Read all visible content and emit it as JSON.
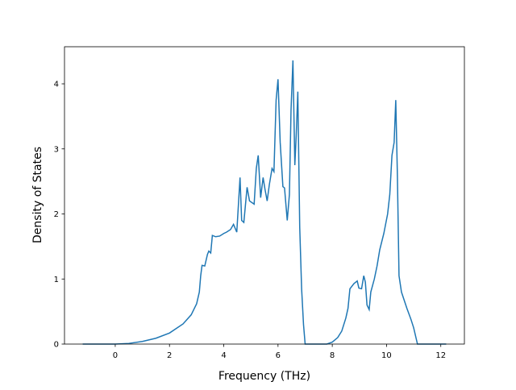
{
  "chart_data": {
    "type": "line",
    "xlabel": "Frequency (THz)",
    "ylabel": "Density of States",
    "xlim": [
      -1.87,
      12.87
    ],
    "ylim": [
      0,
      4.57
    ],
    "xticks": [
      0,
      2,
      4,
      6,
      8,
      10,
      12
    ],
    "yticks": [
      0,
      1,
      2,
      3,
      4
    ],
    "series": [
      {
        "color": "#1f77b4",
        "x": [
          -1.2,
          -0.5,
          0,
          0.5,
          1,
          1.5,
          2,
          2.5,
          2.8,
          3.0,
          3.1,
          3.15,
          3.2,
          3.3,
          3.4,
          3.45,
          3.52,
          3.58,
          3.7,
          3.85,
          4.0,
          4.1,
          4.25,
          4.36,
          4.48,
          4.6,
          4.66,
          4.74,
          4.86,
          4.95,
          5.12,
          5.2,
          5.27,
          5.36,
          5.45,
          5.52,
          5.6,
          5.68,
          5.78,
          5.85,
          5.93,
          6.0,
          6.08,
          6.18,
          6.24,
          6.34,
          6.42,
          6.48,
          6.55,
          6.62,
          6.67,
          6.73,
          6.8,
          6.87,
          6.94,
          7.0,
          7.8,
          8.0,
          8.2,
          8.35,
          8.5,
          8.58,
          8.65,
          8.8,
          8.92,
          8.98,
          9.08,
          9.16,
          9.22,
          9.28,
          9.36,
          9.42,
          9.55,
          9.65,
          9.75,
          9.9,
          10.04,
          10.12,
          10.2,
          10.28,
          10.34,
          10.4,
          10.46,
          10.55,
          10.75,
          10.9,
          11.0,
          11.14,
          12.2
        ],
        "y": [
          0,
          0,
          0,
          0.01,
          0.04,
          0.09,
          0.17,
          0.31,
          0.45,
          0.62,
          0.8,
          1.05,
          1.21,
          1.2,
          1.38,
          1.43,
          1.4,
          1.67,
          1.65,
          1.66,
          1.7,
          1.72,
          1.76,
          1.84,
          1.72,
          2.56,
          1.9,
          1.87,
          2.41,
          2.2,
          2.15,
          2.7,
          2.9,
          2.25,
          2.56,
          2.38,
          2.2,
          2.45,
          2.7,
          2.65,
          3.75,
          4.07,
          3.1,
          2.42,
          2.4,
          1.9,
          2.3,
          3.6,
          4.36,
          2.75,
          3.2,
          3.88,
          1.8,
          0.85,
          0.3,
          0,
          0,
          0.03,
          0.1,
          0.2,
          0.4,
          0.55,
          0.85,
          0.93,
          0.97,
          0.86,
          0.85,
          1.05,
          0.95,
          0.6,
          0.53,
          0.8,
          1.0,
          1.2,
          1.45,
          1.7,
          2.0,
          2.3,
          2.9,
          3.1,
          3.75,
          2.6,
          1.05,
          0.8,
          0.55,
          0.38,
          0.25,
          0,
          0
        ]
      }
    ]
  }
}
